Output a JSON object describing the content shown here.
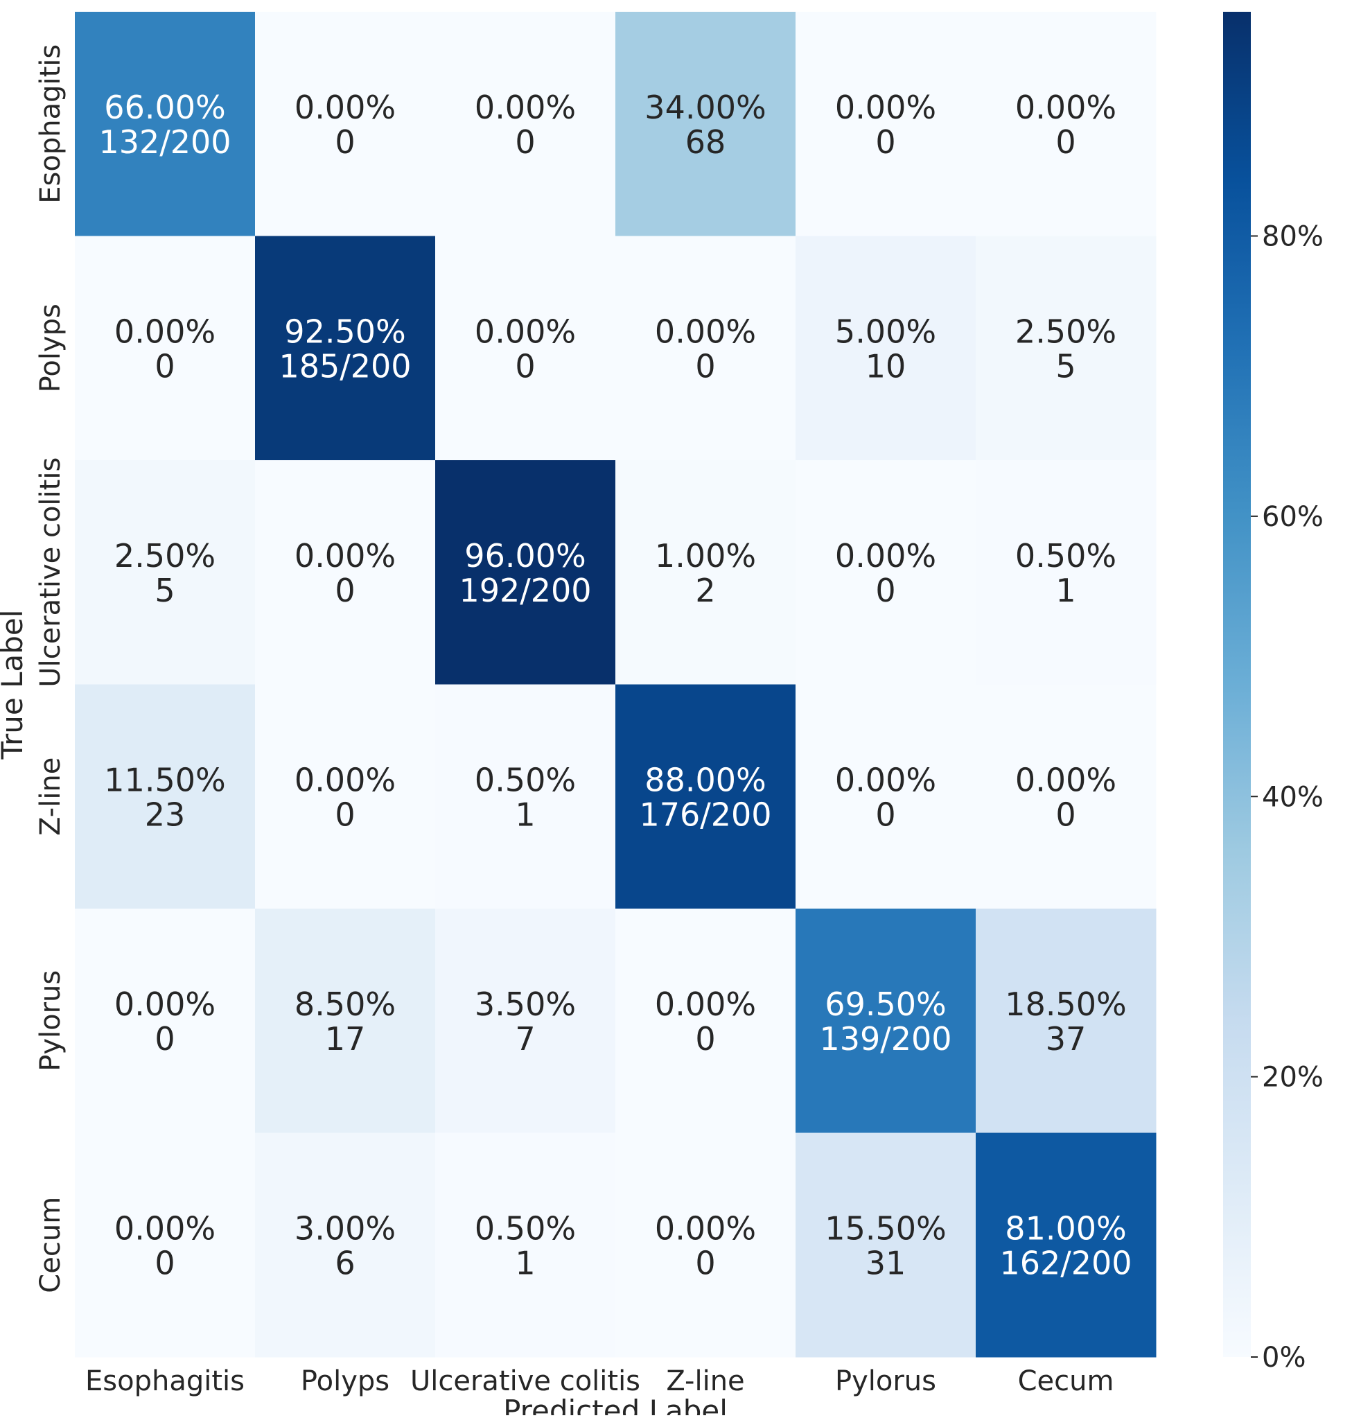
{
  "chart_data": {
    "type": "heatmap",
    "title": "",
    "xlabel": "Predicted Label",
    "ylabel": "True Label",
    "x_categories": [
      "Esophagitis",
      "Polyps",
      "Ulcerative colitis",
      "Z-line",
      "Pylorus",
      "Cecum"
    ],
    "y_categories": [
      "Esophagitis",
      "Polyps",
      "Ulcerative colitis",
      "Z-line",
      "Pylorus",
      "Cecum"
    ],
    "values": [
      [
        66.0,
        0.0,
        0.0,
        34.0,
        0.0,
        0.0
      ],
      [
        0.0,
        92.5,
        0.0,
        0.0,
        5.0,
        2.5
      ],
      [
        2.5,
        0.0,
        96.0,
        1.0,
        0.0,
        0.5
      ],
      [
        11.5,
        0.0,
        0.5,
        88.0,
        0.0,
        0.0
      ],
      [
        0.0,
        8.5,
        3.5,
        0.0,
        69.5,
        18.5
      ],
      [
        0.0,
        3.0,
        0.5,
        0.0,
        15.5,
        81.0
      ]
    ],
    "cell_labels": [
      [
        [
          "66.00%",
          "132/200"
        ],
        [
          "0.00%",
          "0"
        ],
        [
          "0.00%",
          "0"
        ],
        [
          "34.00%",
          "68"
        ],
        [
          "0.00%",
          "0"
        ],
        [
          "0.00%",
          "0"
        ]
      ],
      [
        [
          "0.00%",
          "0"
        ],
        [
          "92.50%",
          "185/200"
        ],
        [
          "0.00%",
          "0"
        ],
        [
          "0.00%",
          "0"
        ],
        [
          "5.00%",
          "10"
        ],
        [
          "2.50%",
          "5"
        ]
      ],
      [
        [
          "2.50%",
          "5"
        ],
        [
          "0.00%",
          "0"
        ],
        [
          "96.00%",
          "192/200"
        ],
        [
          "1.00%",
          "2"
        ],
        [
          "0.00%",
          "0"
        ],
        [
          "0.50%",
          "1"
        ]
      ],
      [
        [
          "11.50%",
          "23"
        ],
        [
          "0.00%",
          "0"
        ],
        [
          "0.50%",
          "1"
        ],
        [
          "88.00%",
          "176/200"
        ],
        [
          "0.00%",
          "0"
        ],
        [
          "0.00%",
          "0"
        ]
      ],
      [
        [
          "0.00%",
          "0"
        ],
        [
          "8.50%",
          "17"
        ],
        [
          "3.50%",
          "7"
        ],
        [
          "0.00%",
          "0"
        ],
        [
          "69.50%",
          "139/200"
        ],
        [
          "18.50%",
          "37"
        ]
      ],
      [
        [
          "0.00%",
          "0"
        ],
        [
          "3.00%",
          "6"
        ],
        [
          "0.50%",
          "1"
        ],
        [
          "0.00%",
          "0"
        ],
        [
          "15.50%",
          "31"
        ],
        [
          "81.00%",
          "162/200"
        ]
      ]
    ],
    "colorbar": {
      "range": [
        0,
        96
      ],
      "ticks": [
        0,
        20,
        40,
        60,
        80
      ],
      "tick_labels": [
        "0%",
        "20%",
        "40%",
        "60%",
        "80%"
      ],
      "colormap": "Blues"
    }
  }
}
